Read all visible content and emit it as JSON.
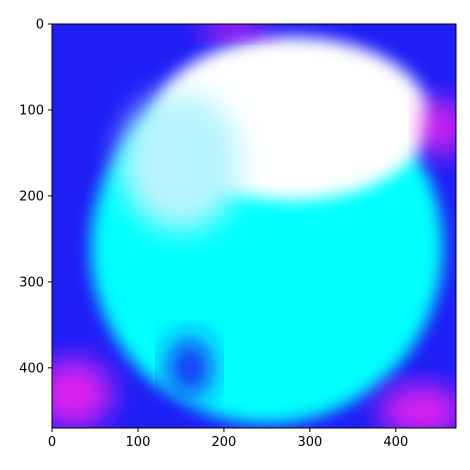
{
  "chart_data": {
    "type": "heatmap",
    "title": "",
    "xlabel": "",
    "ylabel": "",
    "xlim": [
      0,
      470
    ],
    "ylim": [
      470,
      0
    ],
    "x_ticks": [
      0,
      100,
      200,
      300,
      400
    ],
    "y_ticks": [
      0,
      100,
      200,
      300,
      400
    ],
    "x_tick_labels": [
      "0",
      "100",
      "200",
      "300",
      "400"
    ],
    "y_tick_labels": [
      "0",
      "100",
      "200",
      "300",
      "400"
    ],
    "grid": false,
    "image": {
      "extent": [
        0,
        470,
        470,
        0
      ],
      "background_color": "#1e1ef5",
      "colors": {
        "blue": "#1e1ef5",
        "magenta": "#ff22ee",
        "cyan": "#00ffff",
        "white": "#ffffff",
        "light_cyan": "#b8f4ff"
      },
      "regions": [
        {
          "name": "cyan-disk",
          "color": "cyan",
          "center": [
            250,
            260
          ],
          "radius": [
            205,
            205
          ]
        },
        {
          "name": "white-cap",
          "color": "white",
          "center": [
            280,
            110
          ],
          "radius": [
            160,
            95
          ]
        },
        {
          "name": "light-halo-left",
          "color": "light_cyan",
          "center": [
            150,
            160
          ],
          "radius": [
            70,
            80
          ]
        },
        {
          "name": "blue-lobe-bottom-left",
          "color": "blue",
          "center": [
            160,
            400
          ],
          "radius": [
            25,
            35
          ]
        },
        {
          "name": "magenta-corner-top",
          "color": "magenta",
          "center": [
            210,
            5
          ],
          "radius": [
            40,
            12
          ]
        },
        {
          "name": "magenta-corner-bottom-left",
          "color": "magenta",
          "center": [
            25,
            430
          ],
          "radius": [
            45,
            40
          ]
        },
        {
          "name": "magenta-corner-bottom-right",
          "color": "magenta",
          "center": [
            430,
            450
          ],
          "radius": [
            50,
            30
          ]
        },
        {
          "name": "magenta-corner-top-right",
          "color": "magenta",
          "center": [
            455,
            120
          ],
          "radius": [
            25,
            35
          ]
        }
      ]
    }
  }
}
